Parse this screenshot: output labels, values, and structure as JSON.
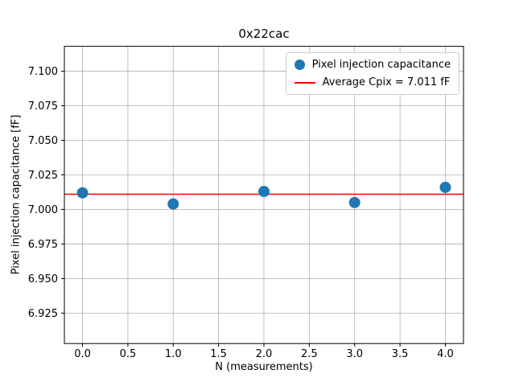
{
  "chart_data": {
    "type": "scatter",
    "title": "0x22cac",
    "xlabel": "N (measurements)",
    "ylabel": "Pixel injection capacitance [fF]",
    "x": [
      0,
      1,
      2,
      3,
      4
    ],
    "y": [
      7.012,
      7.004,
      7.013,
      7.005,
      7.016
    ],
    "average_line": {
      "value": 7.011,
      "label": "Average Cpix = 7.011 fF"
    },
    "xlim": [
      -0.2,
      4.2
    ],
    "ylim": [
      6.903,
      7.118
    ],
    "xticks": [
      0.0,
      0.5,
      1.0,
      1.5,
      2.0,
      2.5,
      3.0,
      3.5,
      4.0
    ],
    "xtick_labels": [
      "0.0",
      "0.5",
      "1.0",
      "1.5",
      "2.0",
      "2.5",
      "3.0",
      "3.5",
      "4.0"
    ],
    "yticks": [
      6.925,
      6.95,
      6.975,
      7.0,
      7.025,
      7.05,
      7.075,
      7.1
    ],
    "ytick_labels": [
      "6.925",
      "6.950",
      "6.975",
      "7.000",
      "7.025",
      "7.050",
      "7.075",
      "7.100"
    ],
    "grid": true,
    "marker_radius": 7,
    "legend": {
      "position": "upper right",
      "entries": [
        {
          "label": "Pixel injection capacitance",
          "marker": "dot",
          "color": "#1f77b4"
        },
        {
          "label": "Average Cpix = 7.011 fF",
          "marker": "line",
          "color": "#ff0000"
        }
      ]
    },
    "colors": {
      "scatter": "#1f77b4",
      "average_line": "#ff0000",
      "grid": "#b0b0b0",
      "axes": "#000000",
      "background": "#ffffff"
    }
  }
}
